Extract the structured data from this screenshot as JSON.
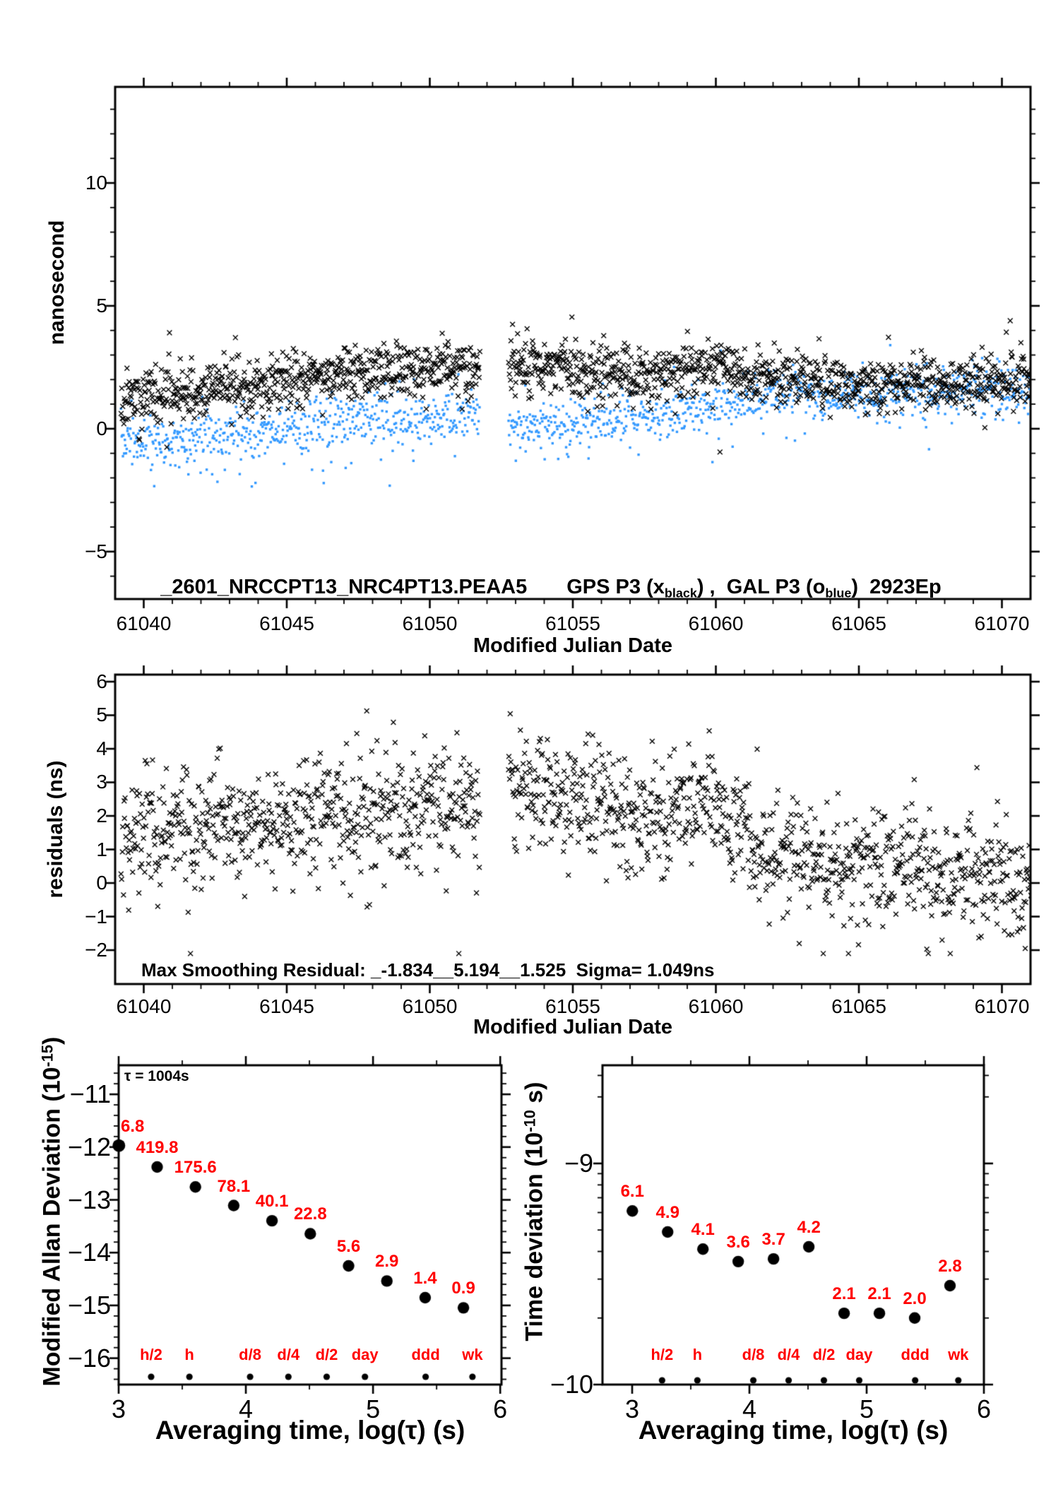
{
  "figure": {
    "background": "#ffffff",
    "black": "#000000",
    "blue": "#3399FF",
    "red": "#FF0000"
  },
  "chart_data": [
    {
      "type": "scatter",
      "panel": "top-time-series",
      "ylabel": "nanosecond",
      "xlabel": "Modified Julian Date",
      "xlim": [
        61039,
        61071
      ],
      "ylim": [
        -6.93,
        13.91
      ],
      "x_major_ticks": [
        61040,
        61045,
        61050,
        61055,
        61060,
        61065,
        61070
      ],
      "x_minor_step": 1,
      "y_major_ticks": [
        -5,
        0,
        5,
        10
      ],
      "y_minor_step": 1,
      "grid": false,
      "annotation": {
        "file": "_2601_NRCCPT13_NRC4PT13.PEAA5",
        "gps_prefix": "GPS P3 (x",
        "gps_sub": "black",
        "middle": ") ,  GAL P3 (o",
        "gal_sub": "blue",
        "suffix": ")  2923Ep"
      },
      "data_gap_mjd": [
        61051.75,
        61052.75
      ],
      "series": [
        {
          "name": "GAL P3",
          "marker": "square",
          "color": "#3399FF",
          "count": 1500,
          "sd": 0.5,
          "clamp": [
            -2.35,
            3.4
          ],
          "seed": 7,
          "low_tail": {
            "before": 61052,
            "prob": 0.1,
            "shift": 0.45,
            "spread": 0.6
          },
          "trend_anchors": [
            [
              61039.2,
              -0.35
            ],
            [
              61041,
              -0.45
            ],
            [
              61043,
              -0.2
            ],
            [
              61045,
              0.1
            ],
            [
              61047,
              0.35
            ],
            [
              61049,
              0.45
            ],
            [
              61051.7,
              0.55
            ],
            [
              61052.8,
              0.2
            ],
            [
              61054,
              0.25
            ],
            [
              61056,
              0.35
            ],
            [
              61058,
              0.6
            ],
            [
              61060,
              0.9
            ],
            [
              61061.5,
              1.25
            ],
            [
              61063,
              1.45
            ],
            [
              61065,
              1.35
            ],
            [
              61067,
              1.45
            ],
            [
              61069,
              1.5
            ],
            [
              61071.2,
              1.55
            ]
          ]
        },
        {
          "name": "GPS P3",
          "marker": "x",
          "color": "#000000",
          "count": 1700,
          "sd": 0.55,
          "clamp": [
            -0.95,
            4.65
          ],
          "seed": 11,
          "trend_anchors": [
            [
              61039.2,
              1.1
            ],
            [
              61041,
              1.45
            ],
            [
              61043,
              1.6
            ],
            [
              61045,
              1.85
            ],
            [
              61047,
              2.1
            ],
            [
              61048.5,
              2.35
            ],
            [
              61050,
              2.5
            ],
            [
              61051.7,
              2.4
            ],
            [
              61052.8,
              2.65
            ],
            [
              61054,
              2.6
            ],
            [
              61055.5,
              2.2
            ],
            [
              61057,
              2.15
            ],
            [
              61058.5,
              2.4
            ],
            [
              61060,
              2.5
            ],
            [
              61061,
              2.15
            ],
            [
              61062,
              2.1
            ],
            [
              61063.5,
              1.95
            ],
            [
              61065,
              1.8
            ],
            [
              61067,
              1.85
            ],
            [
              61069,
              1.9
            ],
            [
              61071.2,
              1.95
            ]
          ]
        }
      ]
    },
    {
      "type": "scatter",
      "panel": "residuals",
      "ylabel": "residuals (ns)",
      "xlabel": "Modified Julian Date",
      "xlim": [
        61039,
        61071
      ],
      "ylim": [
        -3.01,
        6.21
      ],
      "x_major_ticks": [
        61040,
        61045,
        61050,
        61055,
        61060,
        61065,
        61070
      ],
      "x_minor_step": 1,
      "y_major_ticks": [
        -2,
        -1,
        0,
        1,
        2,
        3,
        4,
        5,
        6
      ],
      "grid": false,
      "annotation": "Max Smoothing Residual: _-1.834__5.194__1.525  Sigma= 1.049ns",
      "data_gap_mjd": [
        61051.75,
        61052.75
      ],
      "series": [
        {
          "name": "smoothing residuals",
          "marker": "x",
          "color": "#000000",
          "count": 1600,
          "sd": 0.85,
          "clamp": [
            -2.1,
            5.25
          ],
          "seed": 23,
          "trend_anchors": [
            [
              61039.2,
              1.6
            ],
            [
              61041,
              1.6
            ],
            [
              61043,
              1.7
            ],
            [
              61045,
              1.85
            ],
            [
              61047,
              2.0
            ],
            [
              61049,
              2.15
            ],
            [
              61051.7,
              2.3
            ],
            [
              61052.8,
              2.85
            ],
            [
              61054,
              2.7
            ],
            [
              61055.5,
              2.35
            ],
            [
              61057,
              2.2
            ],
            [
              61058.5,
              2.25
            ],
            [
              61060,
              2.15
            ],
            [
              61061,
              1.5
            ],
            [
              61061.3,
              0.95
            ],
            [
              61062,
              0.85
            ],
            [
              61064,
              0.7
            ],
            [
              61066,
              0.5
            ],
            [
              61068,
              0.3
            ],
            [
              61070,
              0.1
            ],
            [
              61071.2,
              0.0
            ]
          ]
        }
      ]
    },
    {
      "type": "scatter",
      "panel": "modified-allan-deviation",
      "ylabel_main": "Modified Allan Deviation (10",
      "ylabel_sup": "-15",
      "ylabel_close": ")",
      "xlabel": "Averaging time, log(τ) (s)",
      "tau_annotation": "τ = 1004s",
      "xlim": [
        3.0,
        6.01
      ],
      "ylim": [
        -16.5,
        -10.45
      ],
      "x_major_ticks": [
        3,
        4,
        5,
        6
      ],
      "x_minor_step": 0.5,
      "y_major_ticks": [
        -11,
        -12,
        -13,
        -14,
        -15,
        -16
      ],
      "y_minor_step": 0.2,
      "label_color": "#FF0000",
      "points": [
        {
          "x": 3.0017,
          "y": -11.972,
          "label": "6.8",
          "label_clipped_at_axis": true
        },
        {
          "x": 3.3027,
          "y": -12.377,
          "label": "419.8"
        },
        {
          "x": 3.6037,
          "y": -12.756,
          "label": "175.6"
        },
        {
          "x": 3.9047,
          "y": -13.107,
          "label": "78.1"
        },
        {
          "x": 4.2057,
          "y": -13.397,
          "label": "40.1"
        },
        {
          "x": 4.5068,
          "y": -13.642,
          "label": "22.8"
        },
        {
          "x": 4.8078,
          "y": -14.252,
          "label": "5.6"
        },
        {
          "x": 5.1088,
          "y": -14.538,
          "label": "2.9"
        },
        {
          "x": 5.4098,
          "y": -14.854,
          "label": "1.4"
        },
        {
          "x": 5.7108,
          "y": -15.046,
          "label": "0.9"
        }
      ],
      "timescales": [
        {
          "x": 3.2553,
          "label": "h/2"
        },
        {
          "x": 3.5563,
          "label": "h"
        },
        {
          "x": 4.0334,
          "label": "d/8"
        },
        {
          "x": 4.3345,
          "label": "d/4"
        },
        {
          "x": 4.6355,
          "label": "d/2"
        },
        {
          "x": 4.9365,
          "label": "day"
        },
        {
          "x": 5.4137,
          "label": "ddd"
        },
        {
          "x": 5.7817,
          "label": "wk"
        }
      ]
    },
    {
      "type": "scatter",
      "panel": "time-deviation",
      "ylabel_main": "Time deviation (10",
      "ylabel_sup": "-10",
      "ylabel_close": " s)",
      "xlabel": "Averaging time, log(τ) (s)",
      "xlim": [
        2.747,
        6.0
      ],
      "ylim": [
        -10.0,
        -8.556
      ],
      "x_major_ticks": [
        3,
        4,
        5,
        6
      ],
      "x_minor_step": 0.5,
      "y_major_ticks": [
        -9,
        -10
      ],
      "y_minor_list": [
        -9.699,
        -9.523,
        -9.398,
        -9.301,
        -9.222,
        -9.155,
        -9.097,
        -9.046,
        -8.699,
        -8.602
      ],
      "label_color": "#FF0000",
      "points": [
        {
          "x": 3.0017,
          "y": -9.2147,
          "label": "6.1"
        },
        {
          "x": 3.3027,
          "y": -9.3098,
          "label": "4.9"
        },
        {
          "x": 3.6037,
          "y": -9.3872,
          "label": "4.1"
        },
        {
          "x": 3.9047,
          "y": -9.4437,
          "label": "3.6"
        },
        {
          "x": 4.2057,
          "y": -9.4318,
          "label": "3.7"
        },
        {
          "x": 4.5068,
          "y": -9.3768,
          "label": "4.2"
        },
        {
          "x": 4.8078,
          "y": -9.6778,
          "label": "2.1"
        },
        {
          "x": 5.1088,
          "y": -9.6778,
          "label": "2.1"
        },
        {
          "x": 5.4098,
          "y": -9.699,
          "label": "2.0"
        },
        {
          "x": 5.7108,
          "y": -9.5528,
          "label": "2.8"
        }
      ],
      "timescales": [
        {
          "x": 3.2553,
          "label": "h/2"
        },
        {
          "x": 3.5563,
          "label": "h"
        },
        {
          "x": 4.0334,
          "label": "d/8"
        },
        {
          "x": 4.3345,
          "label": "d/4"
        },
        {
          "x": 4.6355,
          "label": "d/2"
        },
        {
          "x": 4.9365,
          "label": "day"
        },
        {
          "x": 5.4137,
          "label": "ddd"
        },
        {
          "x": 5.7817,
          "label": "wk"
        }
      ]
    }
  ]
}
